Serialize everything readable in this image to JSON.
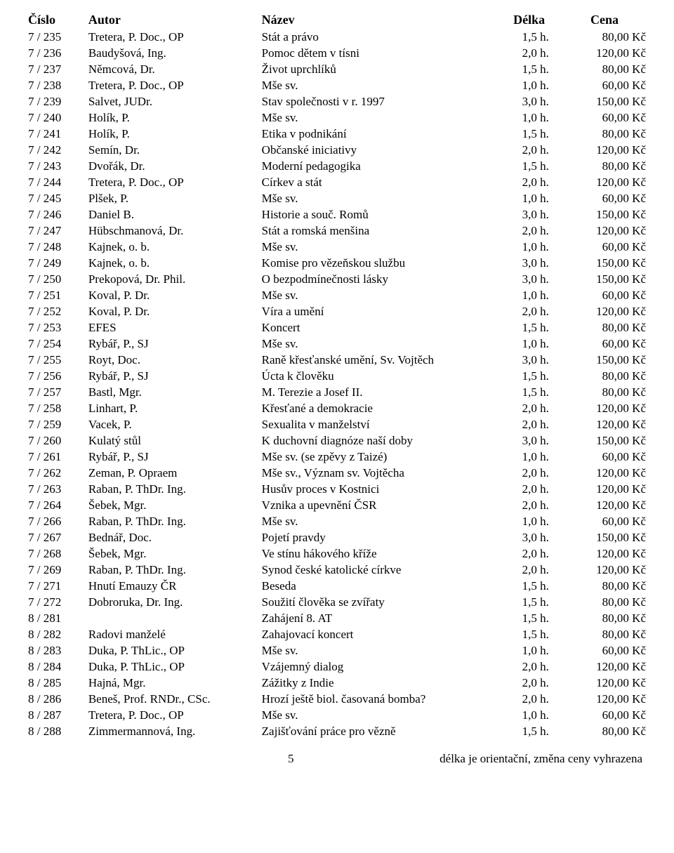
{
  "headers": {
    "cislo": "Číslo",
    "autor": "Autor",
    "nazev": "Název",
    "delka": "Délka",
    "cena": "Cena"
  },
  "rows": [
    {
      "cislo": "7 /  235",
      "autor": "Tretera, P. Doc., OP",
      "nazev": "Stát a právo",
      "delka": "1,5 h.",
      "cena": "80,00 Kč"
    },
    {
      "cislo": "7 /  236",
      "autor": "Baudyšová, Ing.",
      "nazev": "Pomoc dětem v tísni",
      "delka": "2,0 h.",
      "cena": "120,00 Kč"
    },
    {
      "cislo": "7 /  237",
      "autor": "Němcová, Dr.",
      "nazev": "Život uprchlíků",
      "delka": "1,5 h.",
      "cena": "80,00 Kč"
    },
    {
      "cislo": "7 /  238",
      "autor": "Tretera, P. Doc., OP",
      "nazev": "Mše sv.",
      "delka": "1,0 h.",
      "cena": "60,00 Kč"
    },
    {
      "cislo": "7 /  239",
      "autor": "Salvet, JUDr.",
      "nazev": "Stav společnosti v r. 1997",
      "delka": "3,0 h.",
      "cena": "150,00 Kč"
    },
    {
      "cislo": "7 /  240",
      "autor": "Holík, P.",
      "nazev": "Mše sv.",
      "delka": "1,0 h.",
      "cena": "60,00 Kč"
    },
    {
      "cislo": "7 /  241",
      "autor": "Holík, P.",
      "nazev": "Etika v podnikání",
      "delka": "1,5 h.",
      "cena": "80,00 Kč"
    },
    {
      "cislo": "7 /  242",
      "autor": "Semín, Dr.",
      "nazev": "Občanské iniciativy",
      "delka": "2,0 h.",
      "cena": "120,00 Kč"
    },
    {
      "cislo": "7 /  243",
      "autor": "Dvořák, Dr.",
      "nazev": "Moderní pedagogika",
      "delka": "1,5 h.",
      "cena": "80,00 Kč"
    },
    {
      "cislo": "7 /  244",
      "autor": "Tretera, P. Doc., OP",
      "nazev": "Církev a stát",
      "delka": "2,0 h.",
      "cena": "120,00 Kč"
    },
    {
      "cislo": "7 /  245",
      "autor": "Plšek, P.",
      "nazev": "Mše sv.",
      "delka": "1,0 h.",
      "cena": "60,00 Kč"
    },
    {
      "cislo": "7 /  246",
      "autor": "Daniel B.",
      "nazev": "Historie a souč. Romů",
      "delka": "3,0 h.",
      "cena": "150,00 Kč"
    },
    {
      "cislo": "7 /  247",
      "autor": "Hübschmanová, Dr.",
      "nazev": "Stát a romská menšina",
      "delka": "2,0 h.",
      "cena": "120,00 Kč"
    },
    {
      "cislo": "7 /  248",
      "autor": "Kajnek, o. b.",
      "nazev": "Mše sv.",
      "delka": "1,0 h.",
      "cena": "60,00 Kč"
    },
    {
      "cislo": "7 /  249",
      "autor": "Kajnek, o. b.",
      "nazev": "Komise pro vězeňskou službu",
      "delka": "3,0 h.",
      "cena": "150,00 Kč"
    },
    {
      "cislo": "7 /  250",
      "autor": "Prekopová, Dr. Phil.",
      "nazev": "O bezpodmínečnosti lásky",
      "delka": "3,0 h.",
      "cena": "150,00 Kč"
    },
    {
      "cislo": "7 /  251",
      "autor": "Koval, P. Dr.",
      "nazev": "Mše sv.",
      "delka": "1,0 h.",
      "cena": "60,00 Kč"
    },
    {
      "cislo": "7 /  252",
      "autor": "Koval, P. Dr.",
      "nazev": "Víra a umění",
      "delka": "2,0 h.",
      "cena": "120,00 Kč"
    },
    {
      "cislo": "7 /  253",
      "autor": "EFES",
      "nazev": "Koncert",
      "delka": "1,5 h.",
      "cena": "80,00 Kč"
    },
    {
      "cislo": "7 /  254",
      "autor": "Rybář, P., SJ",
      "nazev": "Mše sv.",
      "delka": "1,0 h.",
      "cena": "60,00 Kč"
    },
    {
      "cislo": "7 /  255",
      "autor": "Royt, Doc.",
      "nazev": "Raně křesťanské umění, Sv. Vojtěch",
      "delka": "3,0 h.",
      "cena": "150,00 Kč"
    },
    {
      "cislo": "7 /  256",
      "autor": "Rybář, P., SJ",
      "nazev": "Úcta k člověku",
      "delka": "1,5 h.",
      "cena": "80,00 Kč"
    },
    {
      "cislo": "7 /  257",
      "autor": "Bastl, Mgr.",
      "nazev": "M. Terezie a Josef II.",
      "delka": "1,5 h.",
      "cena": "80,00 Kč"
    },
    {
      "cislo": "7 /  258",
      "autor": "Linhart, P.",
      "nazev": "Křesťané a demokracie",
      "delka": "2,0 h.",
      "cena": "120,00 Kč"
    },
    {
      "cislo": "7 /  259",
      "autor": "Vacek, P.",
      "nazev": "Sexualita v manželství",
      "delka": "2,0 h.",
      "cena": "120,00 Kč"
    },
    {
      "cislo": "7 /  260",
      "autor": "Kulatý stůl",
      "nazev": "K duchovní diagnóze naší doby",
      "delka": "3,0 h.",
      "cena": "150,00 Kč"
    },
    {
      "cislo": "7 /  261",
      "autor": "Rybář, P., SJ",
      "nazev": "Mše sv.  (se zpěvy z Taizé)",
      "delka": "1,0 h.",
      "cena": "60,00 Kč"
    },
    {
      "cislo": "7 /  262",
      "autor": "Zeman, P. Opraem",
      "nazev": "Mše sv., Význam sv. Vojtěcha",
      "delka": "2,0 h.",
      "cena": "120,00 Kč"
    },
    {
      "cislo": "7 /  263",
      "autor": "Raban, P. ThDr. Ing.",
      "nazev": "Husův proces v Kostnici",
      "delka": "2,0 h.",
      "cena": "120,00 Kč"
    },
    {
      "cislo": "7 /  264",
      "autor": "Šebek, Mgr.",
      "nazev": "Vznika a upevnění ČSR",
      "delka": "2,0 h.",
      "cena": "120,00 Kč"
    },
    {
      "cislo": "7 /  266",
      "autor": "Raban, P. ThDr. Ing.",
      "nazev": "Mše sv.",
      "delka": "1,0 h.",
      "cena": "60,00 Kč"
    },
    {
      "cislo": "7 /  267",
      "autor": "Bednář, Doc.",
      "nazev": "Pojetí pravdy",
      "delka": "3,0 h.",
      "cena": "150,00 Kč"
    },
    {
      "cislo": "7 /  268",
      "autor": "Šebek, Mgr.",
      "nazev": "Ve stínu hákového kříže",
      "delka": "2,0 h.",
      "cena": "120,00 Kč"
    },
    {
      "cislo": "7 /  269",
      "autor": "Raban, P. ThDr. Ing.",
      "nazev": "Synod české katolické církve",
      "delka": "2,0 h.",
      "cena": "120,00 Kč"
    },
    {
      "cislo": "7 /  271",
      "autor": "Hnutí Emauzy ČR",
      "nazev": "Beseda",
      "delka": "1,5 h.",
      "cena": "80,00 Kč"
    },
    {
      "cislo": "7 /  272",
      "autor": "Dobroruka, Dr. Ing.",
      "nazev": "Soužití člověka se zvířaty",
      "delka": "1,5 h.",
      "cena": "80,00 Kč"
    },
    {
      "cislo": "8 /  281",
      "autor": "",
      "nazev": "Zahájení 8. AT",
      "delka": "1,5 h.",
      "cena": "80,00 Kč"
    },
    {
      "cislo": "8 /  282",
      "autor": "Radovi manželé",
      "nazev": "Zahajovací koncert",
      "delka": "1,5 h.",
      "cena": "80,00 Kč"
    },
    {
      "cislo": "8 /  283",
      "autor": "Duka, P. ThLic., OP",
      "nazev": "Mše sv.",
      "delka": "1,0 h.",
      "cena": "60,00 Kč"
    },
    {
      "cislo": "8 /  284",
      "autor": "Duka, P. ThLic., OP",
      "nazev": "Vzájemný dialog",
      "delka": "2,0 h.",
      "cena": "120,00 Kč"
    },
    {
      "cislo": "8 /  285",
      "autor": "Hajná, Mgr.",
      "nazev": "Zážitky z Indie",
      "delka": "2,0 h.",
      "cena": "120,00 Kč"
    },
    {
      "cislo": "8 /  286",
      "autor": "Beneš, Prof. RNDr., CSc.",
      "nazev": "Hrozí ještě biol. časovaná bomba?",
      "delka": "2,0 h.",
      "cena": "120,00 Kč"
    },
    {
      "cislo": "8 /  287",
      "autor": "Tretera, P. Doc., OP",
      "nazev": "Mše sv.",
      "delka": "1,0 h.",
      "cena": "60,00 Kč"
    },
    {
      "cislo": "8 /  288",
      "autor": "Zimmermannová, Ing.",
      "nazev": "Zajišťování práce pro vězně",
      "delka": "1,5 h.",
      "cena": "80,00 Kč"
    }
  ],
  "footer": {
    "page": "5",
    "note": "délka je orientační, změna ceny vyhrazena"
  }
}
